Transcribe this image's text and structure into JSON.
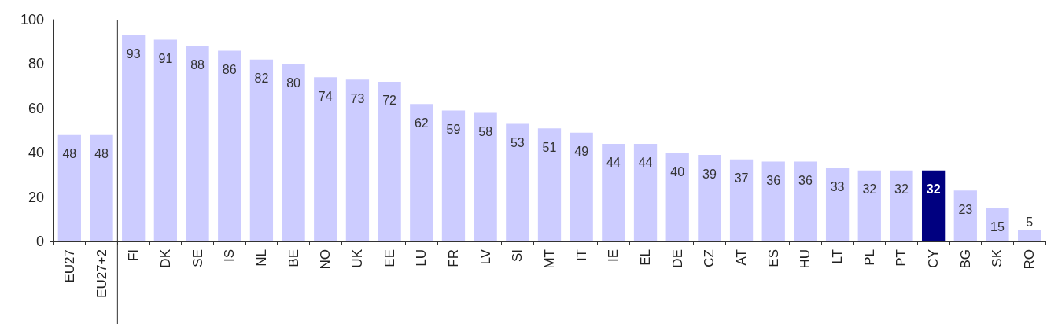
{
  "chart_data": {
    "type": "bar",
    "categories": [
      "EU27",
      "EU27+2",
      "FI",
      "DK",
      "SE",
      "IS",
      "NL",
      "BE",
      "NO",
      "UK",
      "EE",
      "LU",
      "FR",
      "LV",
      "SI",
      "MT",
      "IT",
      "IE",
      "EL",
      "DE",
      "CZ",
      "AT",
      "ES",
      "HU",
      "LT",
      "PL",
      "PT",
      "CY",
      "BG",
      "SK",
      "RO"
    ],
    "values": [
      48,
      48,
      93,
      91,
      88,
      86,
      82,
      80,
      74,
      73,
      72,
      62,
      59,
      58,
      53,
      51,
      49,
      44,
      44,
      40,
      39,
      37,
      36,
      36,
      33,
      32,
      32,
      32,
      23,
      15,
      5
    ],
    "colors": [
      "#ccccff",
      "#ccccff",
      "#ccccff",
      "#ccccff",
      "#ccccff",
      "#ccccff",
      "#ccccff",
      "#ccccff",
      "#ccccff",
      "#ccccff",
      "#ccccff",
      "#ccccff",
      "#ccccff",
      "#ccccff",
      "#ccccff",
      "#ccccff",
      "#ccccff",
      "#ccccff",
      "#ccccff",
      "#ccccff",
      "#ccccff",
      "#ccccff",
      "#ccccff",
      "#ccccff",
      "#ccccff",
      "#ccccff",
      "#ccccff",
      "#000080",
      "#ccccff",
      "#ccccff",
      "#ccccff"
    ],
    "ref_lines": [
      {
        "axis": "x",
        "value": "EU27+2",
        "color": "#333333"
      }
    ],
    "ylim": [
      0,
      100
    ],
    "yticks": [
      0,
      20,
      40,
      60,
      80,
      100
    ],
    "grid": "y",
    "data_labels": true
  }
}
